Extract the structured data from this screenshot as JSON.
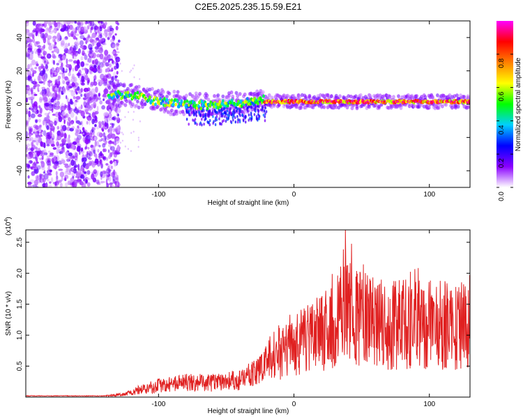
{
  "figure_title": "C2E5.2025.235.15.59.E21",
  "chart_data": [
    {
      "type": "heatmap",
      "title": "C2E5.2025.235.15.59.E21",
      "xlabel": "Height of straight line (km)",
      "ylabel": "Frequency (Hz)",
      "xlim": [
        -198,
        130
      ],
      "ylim": [
        -50,
        50
      ],
      "xticks": [
        -100,
        0,
        100
      ],
      "yticks": [
        -40,
        -20,
        0,
        20,
        40
      ],
      "colorbar": {
        "label": "Normalized spectral amplitude",
        "range": [
          0,
          1
        ],
        "ticks": [
          0.0,
          0.2,
          0.4,
          0.6,
          0.8
        ],
        "colormap": [
          "#ffffff",
          "#8a00ff",
          "#0000ff",
          "#00d0ff",
          "#00ff00",
          "#ffff00",
          "#ff8000",
          "#ff0000",
          "#ff00ff"
        ]
      },
      "features": {
        "noise_region_km": [
          -198,
          -133
        ],
        "signal_start_km": -137,
        "steady_line_start_km": -22,
        "steady_line_freq_hz": 1.5
      }
    },
    {
      "type": "line",
      "title": "",
      "xlabel": "Height of straight line (km)",
      "ylabel": "SNR (10 * v/v)",
      "y_scale_label": "(x10",
      "y_scale_exponent": "4",
      "xlim": [
        -198,
        130
      ],
      "ylim": [
        0,
        2.7
      ],
      "xticks": [
        -100,
        0,
        100
      ],
      "yticks": [
        0.5,
        1.0,
        1.5,
        2.0,
        2.5
      ],
      "series": [
        {
          "name": "SNR",
          "color": "#e02020",
          "envelope_x": [
            -198,
            -140,
            -125,
            -115,
            -100,
            -80,
            -60,
            -40,
            -25,
            -18,
            -10,
            0,
            10,
            20,
            30,
            38,
            50,
            70,
            90,
            110,
            130
          ],
          "envelope_y": [
            0.02,
            0.02,
            0.05,
            0.12,
            0.2,
            0.25,
            0.25,
            0.3,
            0.45,
            0.65,
            0.8,
            0.9,
            1.0,
            1.15,
            1.3,
            1.5,
            1.35,
            1.25,
            1.3,
            1.25,
            1.25
          ],
          "peak": {
            "x": 38,
            "y": 2.7
          }
        }
      ]
    }
  ]
}
